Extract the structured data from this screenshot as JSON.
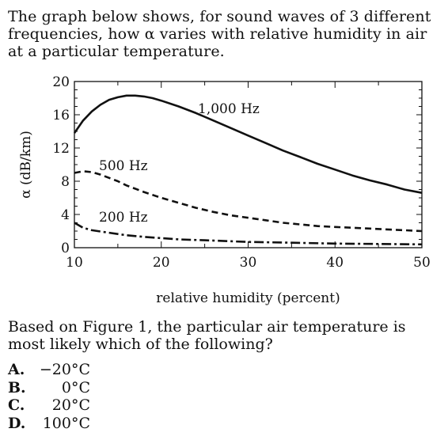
{
  "intro_text": "The graph below shows, for sound waves of 3 different frequencies, how α varies with relative humidity in air at a particular temperature.",
  "question_text": "Based on Figure 1, the particular air temperature is most likely which of the following?",
  "options": [
    {
      "letter": "A.",
      "value": "−20°C"
    },
    {
      "letter": "B.",
      "value": "0°C"
    },
    {
      "letter": "C.",
      "value": "20°C"
    },
    {
      "letter": "D.",
      "value": "100°C"
    }
  ],
  "chart_data": {
    "type": "line",
    "xlabel": "relative humidity (percent)",
    "ylabel": "α (dB/km)",
    "xlim": [
      10,
      50
    ],
    "ylim": [
      0,
      20
    ],
    "x_ticks": [
      10,
      20,
      30,
      40,
      50
    ],
    "y_ticks": [
      0,
      4,
      8,
      12,
      16,
      20
    ],
    "grid": false,
    "series": [
      {
        "name": "1,000 Hz",
        "style": "solid",
        "x": [
          10,
          11,
          12,
          13,
          14,
          15,
          16,
          17,
          18,
          19,
          20,
          22,
          24,
          26,
          28,
          30,
          32,
          34,
          36,
          38,
          40,
          42,
          44,
          46,
          48,
          50
        ],
        "y": [
          13.8,
          15.3,
          16.4,
          17.2,
          17.8,
          18.1,
          18.3,
          18.3,
          18.2,
          18.0,
          17.7,
          17.0,
          16.2,
          15.3,
          14.4,
          13.5,
          12.6,
          11.7,
          10.9,
          10.1,
          9.4,
          8.7,
          8.1,
          7.6,
          7.0,
          6.6
        ]
      },
      {
        "name": "500 Hz",
        "style": "dashed",
        "x": [
          10,
          11,
          12,
          13,
          14,
          15,
          16,
          18,
          20,
          22,
          24,
          26,
          28,
          30,
          32,
          34,
          36,
          38,
          40,
          42,
          44,
          46,
          48,
          50
        ],
        "y": [
          9.0,
          9.2,
          9.1,
          8.8,
          8.4,
          8.0,
          7.5,
          6.7,
          6.0,
          5.4,
          4.8,
          4.3,
          3.9,
          3.6,
          3.3,
          3.0,
          2.8,
          2.6,
          2.5,
          2.4,
          2.3,
          2.2,
          2.1,
          2.0
        ]
      },
      {
        "name": "200 Hz",
        "style": "dash-dot",
        "x": [
          10,
          11,
          12,
          14,
          16,
          18,
          20,
          22,
          25,
          30,
          35,
          40,
          45,
          50
        ],
        "y": [
          3.0,
          2.4,
          2.1,
          1.8,
          1.5,
          1.3,
          1.15,
          1.0,
          0.9,
          0.7,
          0.6,
          0.5,
          0.45,
          0.4
        ]
      }
    ]
  },
  "colors": {
    "ink": "#111111",
    "background": "#ffffff"
  }
}
